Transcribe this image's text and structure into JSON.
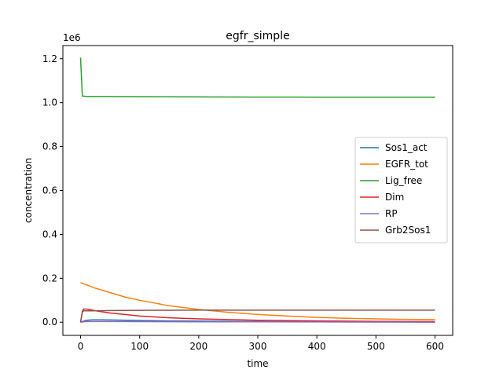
{
  "chart_data": {
    "type": "line",
    "title": "egfr_simple",
    "xlabel": "time",
    "ylabel": "concentration",
    "y_scale_label": "1e6",
    "xlim": [
      -30,
      630
    ],
    "ylim": [
      -60000,
      1260000
    ],
    "x_ticks": [
      0,
      100,
      200,
      300,
      400,
      500,
      600
    ],
    "y_ticks": [
      0,
      200000,
      400000,
      600000,
      800000,
      1000000,
      1200000
    ],
    "y_tick_labels": [
      "0.0",
      "0.2",
      "0.4",
      "0.6",
      "0.8",
      "1.0",
      "1.2"
    ],
    "grid": false,
    "legend_position": "center-right",
    "series": [
      {
        "name": "Sos1_act",
        "color": "#1f77b4",
        "x": [
          0,
          5,
          10,
          20,
          30,
          50,
          100,
          150,
          200,
          300,
          400,
          500,
          600
        ],
        "y": [
          0,
          5000,
          9000,
          11000,
          11000,
          10000,
          8000,
          6000,
          5000,
          3000,
          2000,
          1000,
          500
        ]
      },
      {
        "name": "EGFR_tot",
        "color": "#ff7f0e",
        "x": [
          0,
          10,
          25,
          50,
          75,
          100,
          150,
          200,
          250,
          300,
          350,
          400,
          450,
          500,
          550,
          600
        ],
        "y": [
          180000,
          170000,
          155000,
          135000,
          115000,
          100000,
          75000,
          58000,
          45000,
          35000,
          28000,
          22000,
          18000,
          15000,
          13000,
          12000
        ]
      },
      {
        "name": "Lig_free",
        "color": "#2ca02c",
        "x": [
          0,
          3,
          10,
          50,
          100,
          200,
          300,
          400,
          500,
          600
        ],
        "y": [
          1205000,
          1030000,
          1028000,
          1028000,
          1027000,
          1026000,
          1025500,
          1025000,
          1025000,
          1025000
        ]
      },
      {
        "name": "Dim",
        "color": "#d62728",
        "x": [
          0,
          3,
          5,
          10,
          20,
          30,
          50,
          75,
          100,
          150,
          200,
          250,
          300,
          400,
          500,
          600
        ],
        "y": [
          0,
          50000,
          60000,
          60000,
          55000,
          50000,
          42000,
          35000,
          28000,
          20000,
          15000,
          12000,
          9000,
          6000,
          4000,
          3000
        ]
      },
      {
        "name": "RP",
        "color": "#9467bd",
        "x": [
          0,
          5,
          10,
          20,
          50,
          100,
          200,
          300,
          400,
          500,
          600
        ],
        "y": [
          0,
          2000,
          3000,
          3000,
          3000,
          2500,
          2000,
          1500,
          1000,
          800,
          600
        ]
      },
      {
        "name": "Grb2Sos1",
        "color": "#8c564b",
        "x": [
          0,
          3,
          5,
          10,
          20,
          50,
          100,
          200,
          300,
          400,
          500,
          600
        ],
        "y": [
          0,
          45000,
          52000,
          52000,
          52000,
          53000,
          54000,
          55000,
          55000,
          55000,
          55000,
          55000
        ]
      }
    ]
  }
}
